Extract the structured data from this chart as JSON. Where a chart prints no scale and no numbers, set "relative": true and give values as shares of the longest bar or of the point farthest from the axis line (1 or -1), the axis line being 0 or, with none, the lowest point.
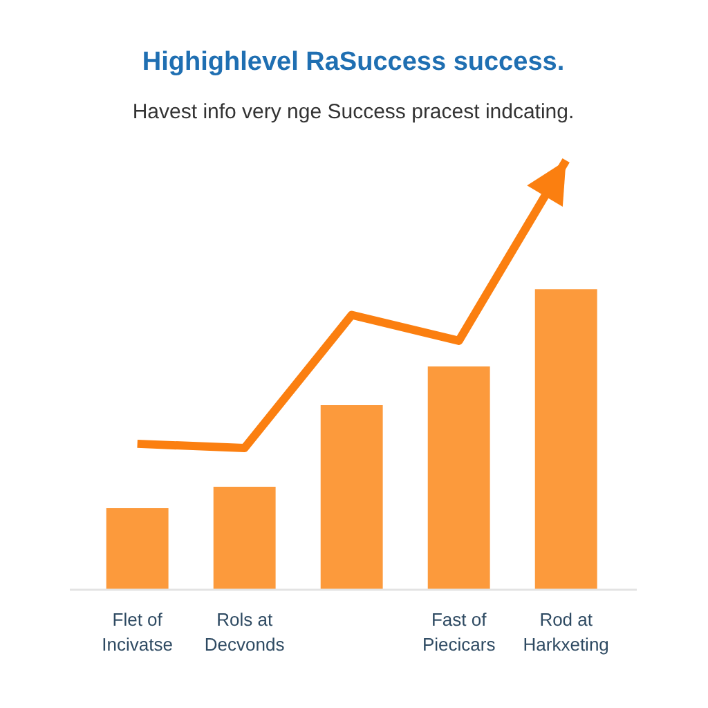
{
  "chart_data": {
    "type": "bar",
    "title": "Highighlevel RaSuccess success.",
    "subtitle": "Havest info very nge Success pracest indcating.",
    "categories": [
      "Flet of\nIncivatse",
      "Rols at\nDecvonds",
      null,
      "Fast of\nPiecicars",
      "Rod at\nHarkxeting"
    ],
    "relative": true,
    "series": [
      {
        "color": "#fc9a3c",
        "values": [
          0.19,
          0.24,
          0.43,
          0.52,
          0.7
        ]
      },
      {
        "type": "line",
        "color": "#fb7f10",
        "values": [
          0.34,
          0.33,
          0.64,
          0.58,
          1
        ]
      }
    ]
  }
}
